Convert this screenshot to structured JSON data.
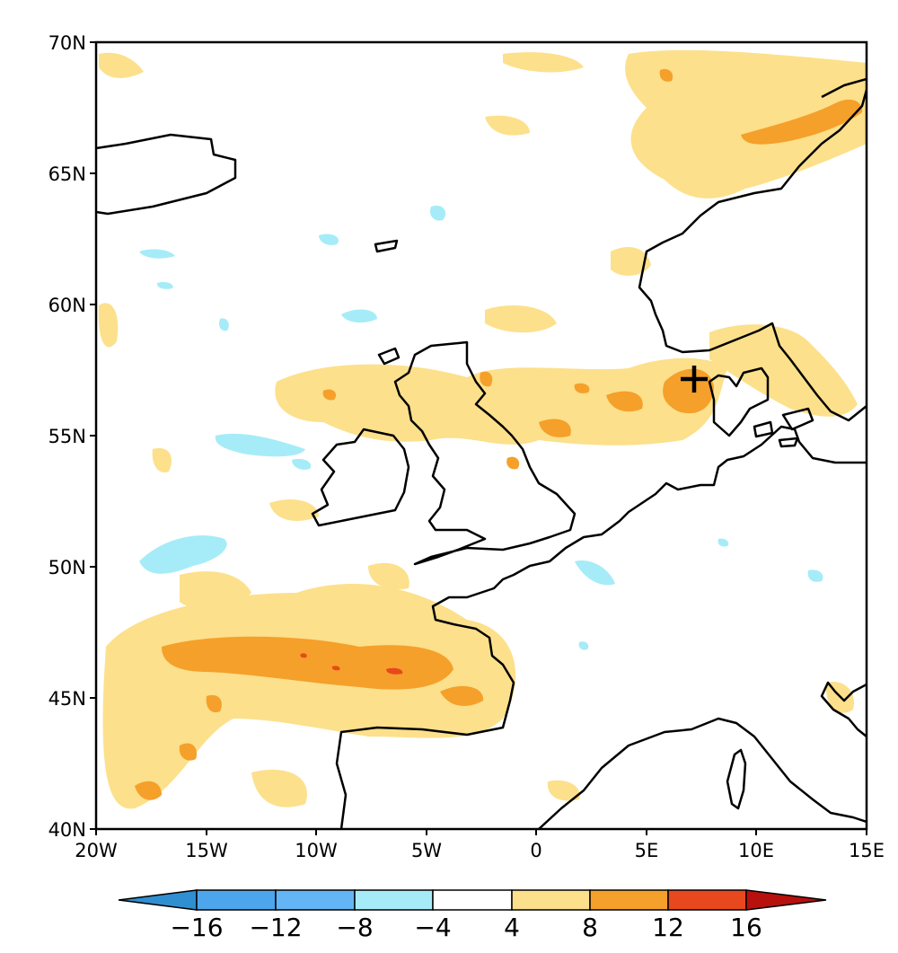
{
  "map": {
    "lat_labels": [
      "70N",
      "65N",
      "60N",
      "55N",
      "50N",
      "45N",
      "40N"
    ],
    "lon_labels": [
      "20W",
      "15W",
      "10W",
      "5W",
      "0",
      "5E",
      "10E",
      "15E"
    ],
    "extent": {
      "lon": [
        -20,
        15
      ],
      "lat": [
        40,
        70
      ]
    },
    "marker": {
      "symbol": "+",
      "lon": 7.2,
      "lat": 57.2
    }
  },
  "colorbar": {
    "labels": [
      "−16",
      "−12",
      "−8",
      "−4",
      "4",
      "8",
      "12",
      "16"
    ],
    "levels": [
      -16,
      -12,
      -8,
      -4,
      4,
      8,
      12,
      16
    ],
    "colors": [
      "#2f8fd0",
      "#4da6ec",
      "#63b5f5",
      "#a6ecf8",
      "#ffffff",
      "#fce08b",
      "#f5a02a",
      "#e8481d",
      "#b8100c"
    ]
  }
}
